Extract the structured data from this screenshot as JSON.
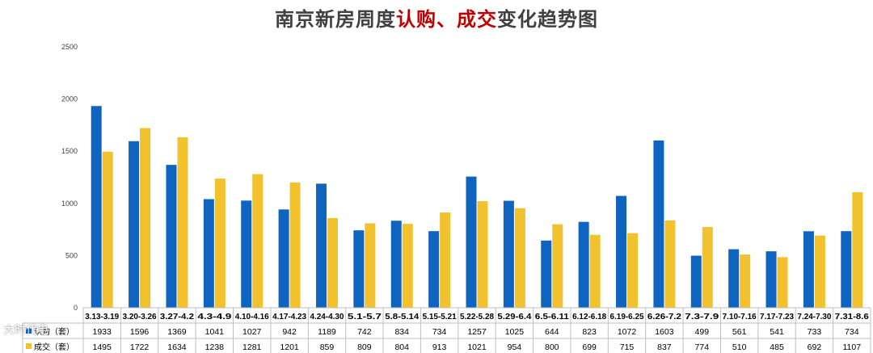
{
  "title": {
    "part1": "南京新房周度",
    "part2": "认购、成交",
    "part3": "变化趋势图"
  },
  "watermark": "大时代电",
  "colors": {
    "series1": "#0f64c0",
    "series2": "#f2c12e",
    "title_text": "#404040",
    "title_highlight": "#c00000"
  },
  "chart_data": {
    "type": "bar",
    "title": "南京新房周度认购、成交变化趋势图",
    "ylim": [
      0,
      2500
    ],
    "yticks": [
      0,
      500,
      1000,
      1500,
      2000,
      2500
    ],
    "grid": false,
    "legend": "data-table",
    "categories": [
      "3.13-3.19",
      "3.20-3.26",
      "3.27-4.2",
      "4.3-4.9",
      "4.10-4.16",
      "4.17-4.23",
      "4.24-4.30",
      "5.1-5.7",
      "5.8-5.14",
      "5.15-5.21",
      "5.22-5.28",
      "5.29-6.4",
      "6.5-6.11",
      "6.12-6.18",
      "6.19-6.25",
      "6.26-7.2",
      "7.3-7.9",
      "7.10-7.16",
      "7.17-7.23",
      "7.24-7.30",
      "7.31-8.6"
    ],
    "series": [
      {
        "name": "认购（套）",
        "values": [
          1933,
          1596,
          1369,
          1041,
          1027,
          942,
          1189,
          742,
          834,
          734,
          1257,
          1025,
          644,
          823,
          1072,
          1603,
          499,
          561,
          541,
          733,
          734
        ]
      },
      {
        "name": "成交（套）",
        "values": [
          1495,
          1722,
          1634,
          1238,
          1281,
          1201,
          859,
          809,
          804,
          913,
          1021,
          954,
          800,
          699,
          715,
          837,
          774,
          510,
          485,
          692,
          1107
        ]
      }
    ]
  }
}
